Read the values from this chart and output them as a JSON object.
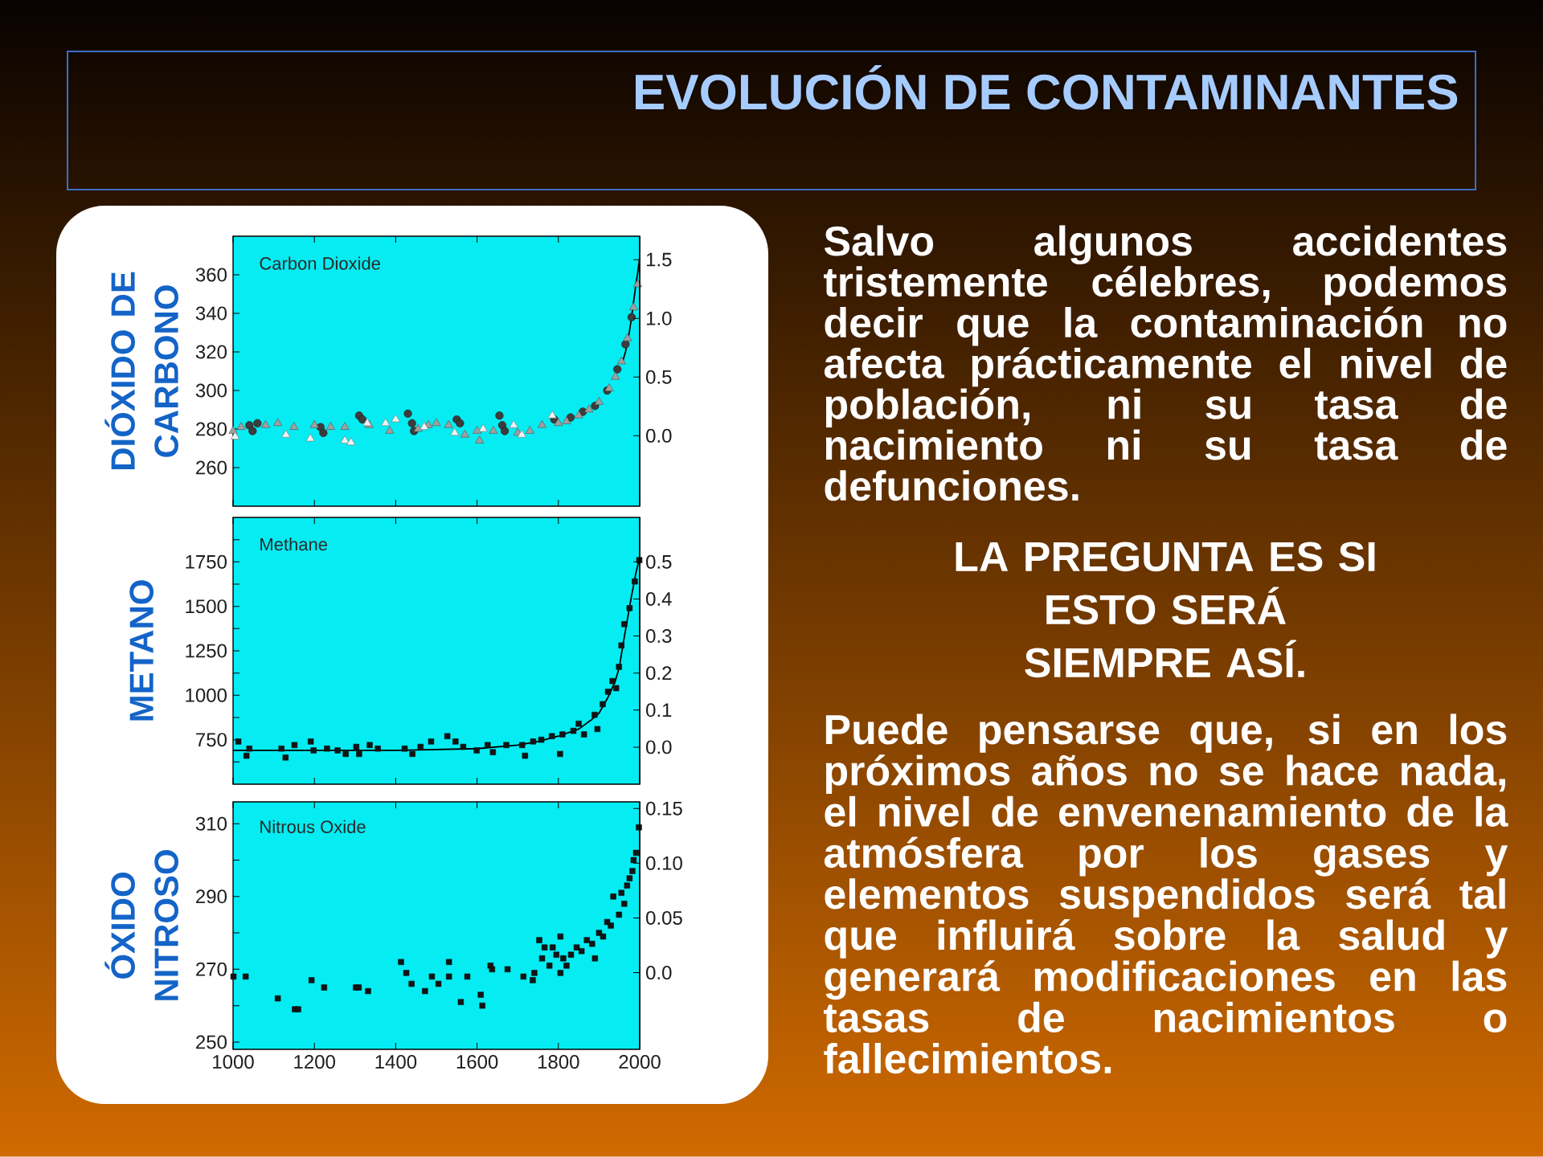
{
  "chart_data": [
    {
      "type": "scatter",
      "title": "Carbon Dioxide",
      "ylabel": "DIÓXIDO DE CARBONO",
      "xlim": [
        1000,
        2000
      ],
      "xticks": [
        1000,
        1200,
        1400,
        1600,
        1800,
        2000
      ],
      "ylim": [
        240,
        380
      ],
      "yticks": [
        260,
        280,
        300,
        320,
        340,
        360
      ],
      "y2lim": [
        -0.6,
        1.7
      ],
      "y2ticks": [
        {
          "value": 0,
          "label": "0.0"
        },
        0.5,
        {
          "value": 1,
          "label": "1.0"
        },
        1.5
      ],
      "tick_labels": "y",
      "series": [
        {
          "color": "#3c3c3c",
          "marker": "circle",
          "x": [
            1040,
            1048,
            1060,
            1215,
            1222,
            1310,
            1318,
            1430,
            1440,
            1445,
            1550,
            1558,
            1655,
            1662,
            1668,
            1790,
            1830,
            1860,
            1890,
            1920,
            1945,
            1965,
            1980
          ],
          "values": [
            282,
            279,
            283,
            281,
            278,
            287,
            285,
            288,
            283,
            279,
            285,
            283,
            287,
            282,
            279,
            285,
            286,
            289,
            292,
            300,
            311,
            324,
            338
          ]
        },
        {
          "color": "#a0a0a0",
          "marker": "triangle",
          "x": [
            1000,
            1020,
            1080,
            1110,
            1150,
            1200,
            1240,
            1275,
            1335,
            1385,
            1455,
            1480,
            1500,
            1530,
            1570,
            1600,
            1606,
            1640,
            1700,
            1730,
            1760,
            1800,
            1820,
            1850,
            1875,
            1900,
            1925,
            1940,
            1955,
            1970,
            1985,
            1995
          ],
          "values": [
            279,
            281,
            282,
            283,
            281,
            282,
            281,
            281,
            282,
            279,
            280,
            282,
            283,
            282,
            277,
            279,
            274,
            279,
            278,
            279,
            282,
            283,
            284,
            287,
            290,
            294,
            301,
            307,
            315,
            327,
            343,
            355
          ]
        },
        {
          "color": "#f2f2f2",
          "marker": "triangle",
          "x": [
            1005,
            1130,
            1190,
            1275,
            1290,
            1330,
            1375,
            1400,
            1470,
            1545,
            1615,
            1690,
            1710,
            1785
          ],
          "values": [
            276,
            277,
            275,
            274,
            273,
            283,
            283,
            285,
            281,
            278,
            280,
            282,
            277,
            287
          ]
        },
        {
          "type": "line",
          "color": "#000000",
          "marker": "none",
          "x": [
            1958,
            1965,
            1970,
            1975,
            1980,
            1985,
            1990,
            1995,
            2000
          ],
          "values": [
            315,
            320,
            325,
            331,
            338,
            346,
            354,
            361,
            369
          ]
        }
      ]
    },
    {
      "type": "scatter",
      "title": "Methane",
      "ylabel": "METANO",
      "xlim": [
        1000,
        2000
      ],
      "xticks": [
        1000,
        1200,
        1400,
        1600,
        1800,
        2000
      ],
      "ylim": [
        500,
        2000
      ],
      "yticks": [
        {
          "value": 625,
          "label": null
        },
        750,
        {
          "value": 875,
          "label": null
        },
        1000,
        {
          "value": 1125,
          "label": null
        },
        1250,
        {
          "value": 1375,
          "label": null
        },
        1500,
        {
          "value": 1625,
          "label": null
        },
        1750,
        {
          "value": 1875,
          "label": null
        }
      ],
      "y2lim": [
        -0.1,
        0.62
      ],
      "y2ticks": [
        {
          "value": 0,
          "label": "0.0"
        },
        0.1,
        0.2,
        0.3,
        0.4,
        0.5
      ],
      "tick_labels": "y",
      "series": [
        {
          "color": "#141414",
          "marker": "square",
          "x": [
            1013,
            1033,
            1040,
            1119,
            1129,
            1151,
            1191,
            1198,
            1231,
            1257,
            1277,
            1303,
            1310,
            1336,
            1356,
            1422,
            1441,
            1461,
            1487,
            1527,
            1547,
            1566,
            1599,
            1626,
            1639,
            1672,
            1711,
            1718,
            1738,
            1758,
            1784,
            1804,
            1810,
            1837,
            1850,
            1863,
            1889,
            1896,
            1909,
            1922,
            1933,
            1942,
            1949,
            1955,
            1962,
            1975,
            1988,
            1999
          ],
          "values": [
            740,
            660,
            700,
            700,
            650,
            720,
            740,
            690,
            700,
            690,
            670,
            710,
            670,
            720,
            700,
            700,
            670,
            710,
            740,
            770,
            740,
            710,
            690,
            720,
            680,
            720,
            720,
            660,
            740,
            750,
            770,
            670,
            780,
            800,
            840,
            780,
            890,
            810,
            950,
            1020,
            1080,
            1040,
            1160,
            1280,
            1400,
            1490,
            1640,
            1760
          ]
        },
        {
          "type": "line",
          "color": "#000000",
          "marker": "none",
          "x": [
            1000,
            1200,
            1400,
            1600,
            1700,
            1750,
            1800,
            1850,
            1880,
            1900,
            1920,
            1940,
            1950,
            1960,
            1970,
            1980,
            1990,
            2000
          ],
          "values": [
            690,
            690,
            690,
            700,
            720,
            740,
            770,
            810,
            860,
            900,
            980,
            1080,
            1160,
            1300,
            1430,
            1560,
            1680,
            1780
          ]
        }
      ]
    },
    {
      "type": "scatter",
      "title": "Nitrous Oxide",
      "ylabel": "ÓXIDO NITROSO",
      "xlim": [
        1000,
        2000
      ],
      "xticks": [
        1000,
        1200,
        1400,
        1600,
        1800,
        2000
      ],
      "ylim": [
        248,
        316
      ],
      "yticks": [
        250,
        {
          "value": 260,
          "label": null
        },
        270,
        {
          "value": 280,
          "label": null
        },
        290,
        {
          "value": 300,
          "label": null
        },
        310
      ],
      "y2lim": [
        -0.07,
        0.156
      ],
      "y2ticks": [
        {
          "value": 0,
          "label": "0.0"
        },
        0.05,
        {
          "value": 0.1,
          "label": "0.10"
        },
        0.15
      ],
      "series": [
        {
          "color": "#141414",
          "marker": "square",
          "x": [
            1001,
            1031,
            1110,
            1152,
            1160,
            1193,
            1224,
            1302,
            1309,
            1332,
            1413,
            1426,
            1439,
            1472,
            1489,
            1505,
            1531,
            1531,
            1560,
            1576,
            1609,
            1613,
            1633,
            1637,
            1675,
            1714,
            1737,
            1741,
            1753,
            1760,
            1766,
            1778,
            1786,
            1795,
            1805,
            1805,
            1812,
            1820,
            1831,
            1845,
            1857,
            1870,
            1883,
            1890,
            1900,
            1910,
            1920,
            1929,
            1935,
            1949,
            1955,
            1962,
            1969,
            1975,
            1982,
            1985,
            1991,
            1998
          ],
          "values": [
            268,
            268,
            262,
            259,
            259,
            267,
            265,
            265,
            265,
            264,
            272,
            269,
            266,
            264,
            268,
            266,
            272,
            268,
            261,
            268,
            263,
            260,
            271,
            270,
            270,
            268,
            267,
            269,
            278,
            273,
            276,
            271,
            276,
            274,
            279,
            269,
            273,
            271,
            274,
            276,
            275,
            278,
            277,
            273,
            280,
            279,
            283,
            282,
            290,
            285,
            291,
            288,
            293,
            295,
            297,
            300,
            302,
            309
          ]
        }
      ]
    },
    {
      "type": "other",
      "title": "EVOLUCIÓN DE CONTAMINANTES",
      "annotations": [
        "Salvo algunos accidentes tristemente célebres, podemos decir que la contaminación no afecta prácticamente el nivel de población, ni su tasa de nacimiento ni su tasa de defunciones.",
        "LA PREGUNTA ES SI ESTO SERÁ SIEMPRE ASÍ.",
        "Puede pensarse que, si en los próximos años no se hace nada, el nivel de envenenamiento de la atmósfera por los gases y elementos suspendidos será tal que influirá sobre la salud y generará modificaciones en las tasas de nacimientos o fallecimientos."
      ]
    }
  ]
}
